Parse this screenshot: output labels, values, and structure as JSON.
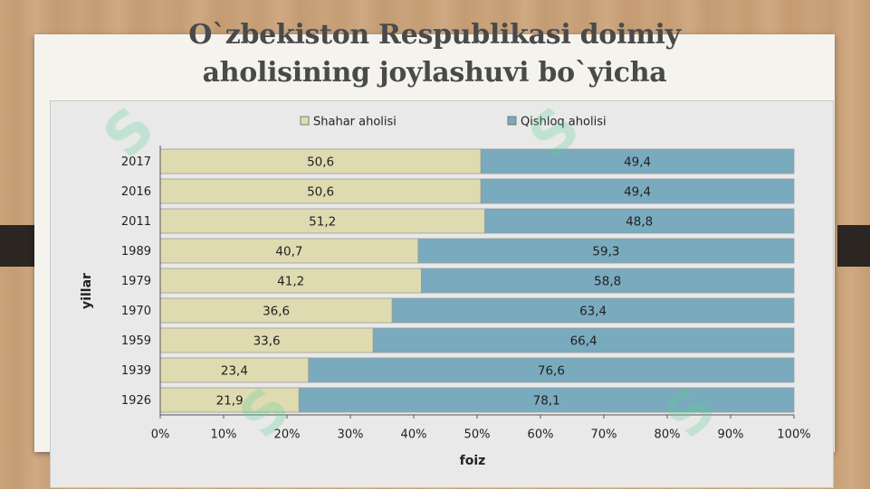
{
  "slide": {
    "title_line1": "O`zbekiston Respublikasi doimiy",
    "title_line2": "aholisining joylashuvi bo`yicha"
  },
  "colors": {
    "urban": "#dedbb0",
    "rural": "#7aaabd",
    "bar_border": "#9a9a9a",
    "text": "#222222"
  },
  "chart_data": {
    "type": "bar",
    "orientation": "horizontal",
    "stacked": true,
    "categories": [
      "2017",
      "2016",
      "2011",
      "1989",
      "1979",
      "1970",
      "1959",
      "1939",
      "1926"
    ],
    "series": [
      {
        "name": "Shahar aholisi",
        "values": [
          50.6,
          50.6,
          51.2,
          40.7,
          41.2,
          36.6,
          33.6,
          23.4,
          21.9
        ]
      },
      {
        "name": "Qishloq aholisi",
        "values": [
          49.4,
          49.4,
          48.8,
          59.3,
          58.8,
          63.4,
          66.4,
          76.6,
          78.1
        ]
      }
    ],
    "value_labels": [
      [
        "50,6",
        "50,6",
        "51,2",
        "40,7",
        "41,2",
        "36,6",
        "33,6",
        "23,4",
        "21,9"
      ],
      [
        "49,4",
        "49,4",
        "48,8",
        "59,3",
        "58,8",
        "63,4",
        "66,4",
        "76,6",
        "78,1"
      ]
    ],
    "xlabel": "foiz",
    "ylabel": "yillar",
    "xlim": [
      0,
      100
    ],
    "x_ticks": [
      "0%",
      "10%",
      "20%",
      "30%",
      "40%",
      "50%",
      "60%",
      "70%",
      "80%",
      "90%",
      "100%"
    ],
    "grid": false,
    "legend_position": "top"
  }
}
